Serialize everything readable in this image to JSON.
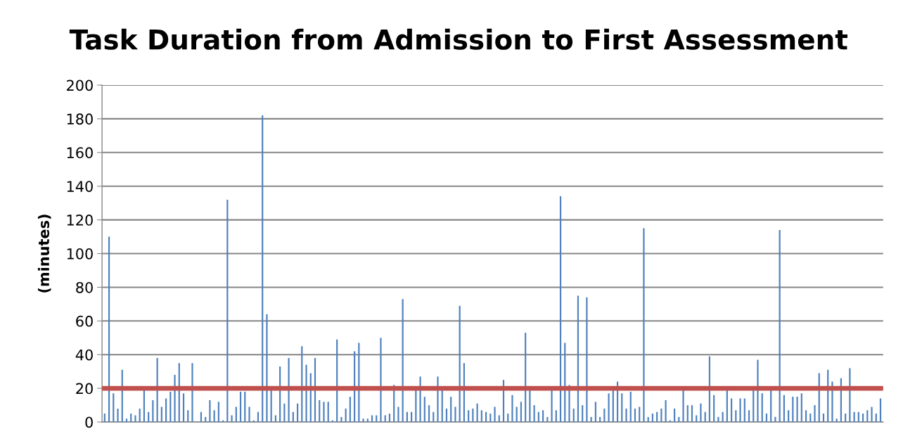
{
  "chart_data": {
    "type": "bar",
    "title": "Task Duration from Admission to First Assessment",
    "ylabel": "(minutes)",
    "categories": [
      null,
      null,
      null,
      null,
      null,
      null,
      null,
      null,
      null,
      null,
      null,
      null,
      null,
      null,
      null,
      null,
      null,
      null,
      null,
      null,
      null,
      null,
      null,
      null,
      null,
      null,
      null,
      null,
      null,
      null,
      null,
      null,
      null,
      null,
      null,
      null,
      null,
      null,
      null,
      null,
      null,
      null,
      null,
      null,
      null,
      null,
      null,
      null,
      null,
      null,
      null,
      null,
      null,
      null,
      null,
      null,
      null,
      null,
      null,
      null,
      null,
      null,
      null,
      null,
      null,
      null,
      null,
      null,
      null,
      null,
      null,
      null,
      null,
      null,
      null,
      null,
      null,
      null,
      null,
      null,
      null,
      null,
      null,
      null,
      null,
      null,
      null,
      null,
      null,
      null,
      null,
      null,
      null,
      null,
      null,
      null,
      null,
      null,
      null,
      null,
      null,
      null,
      null,
      null,
      null,
      null,
      null,
      null,
      null,
      null,
      null,
      null,
      null,
      null,
      null,
      null,
      null,
      null,
      null,
      null,
      null,
      null,
      null,
      null,
      null,
      null,
      null,
      null,
      null,
      null,
      null,
      null,
      null,
      null,
      null,
      null,
      null,
      null,
      null,
      null,
      null,
      null,
      null,
      null,
      null,
      null,
      null,
      null,
      null,
      null,
      null,
      null,
      null,
      null,
      null,
      null,
      null,
      null,
      null,
      null,
      null,
      null,
      null,
      null,
      null,
      null,
      null,
      null,
      null,
      null,
      null,
      null,
      null,
      null,
      null,
      null,
      null,
      null
    ],
    "values": [
      5,
      110,
      17,
      8,
      31,
      2,
      5,
      4,
      8,
      19,
      6,
      13,
      38,
      9,
      14,
      18,
      28,
      35,
      17,
      7,
      35,
      0,
      6,
      3,
      13,
      7,
      12,
      1,
      132,
      4,
      9,
      18,
      18,
      9,
      1,
      6,
      182,
      64,
      19,
      4,
      33,
      11,
      38,
      6,
      11,
      45,
      34,
      29,
      38,
      13,
      12,
      12,
      1,
      49,
      3,
      8,
      15,
      42,
      47,
      2,
      2,
      4,
      4,
      50,
      4,
      5,
      22,
      9,
      73,
      6,
      6,
      19,
      27,
      15,
      10,
      6,
      27,
      19,
      8,
      15,
      9,
      69,
      35,
      7,
      8,
      11,
      7,
      6,
      5,
      9,
      4,
      25,
      5,
      16,
      9,
      12,
      53,
      19,
      10,
      6,
      7,
      3,
      19,
      7,
      134,
      47,
      22,
      8,
      75,
      10,
      74,
      3,
      12,
      3,
      8,
      17,
      19,
      24,
      17,
      8,
      18,
      8,
      9,
      115,
      3,
      5,
      6,
      8,
      13,
      1,
      8,
      3,
      19,
      10,
      10,
      4,
      11,
      6,
      39,
      16,
      3,
      6,
      19,
      14,
      7,
      14,
      14,
      7,
      19,
      37,
      17,
      5,
      19,
      3,
      114,
      16,
      7,
      15,
      15,
      17,
      7,
      5,
      10,
      29,
      5,
      31,
      24,
      2,
      26,
      5,
      32,
      6,
      6,
      5,
      7,
      9,
      5,
      14
    ],
    "color": "#4f81bd",
    "ylim": [
      0,
      200
    ],
    "yticks": [
      0,
      20,
      40,
      60,
      80,
      100,
      120,
      140,
      160,
      180,
      200
    ],
    "grid": "y",
    "tick_labels": "y",
    "ref_lines": [
      {
        "axis": "y",
        "value": 20,
        "color": "#c0504d",
        "line_style": "solid"
      }
    ]
  }
}
